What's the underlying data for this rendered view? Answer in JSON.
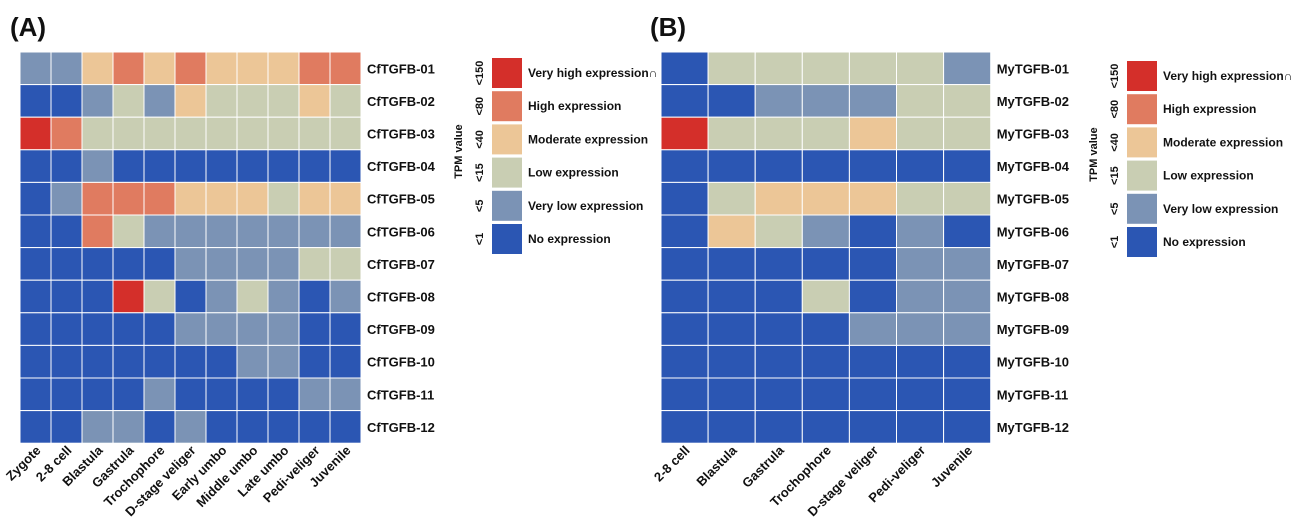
{
  "colors": {
    "level_0": "#2b56b3",
    "level_1": "#7b93b5",
    "level_2": "#c9ceb3",
    "level_3": "#ecc697",
    "level_4": "#e07b60",
    "level_5": "#d42f2a",
    "grid": "#ffffff"
  },
  "legend": {
    "title": "TPM value",
    "ticks": [
      "<150",
      "<80",
      "<40",
      "<15",
      "<5",
      "<1"
    ],
    "entries": [
      {
        "label": "Very high expression∩",
        "level": 5
      },
      {
        "label": "High expression",
        "level": 4
      },
      {
        "label": "Moderate expression",
        "level": 3
      },
      {
        "label": "Low expression",
        "level": 2
      },
      {
        "label": "Very low expression",
        "level": 1
      },
      {
        "label": "No expression",
        "level": 0
      }
    ]
  },
  "chart_data": [
    {
      "type": "heatmap",
      "panel_label": "(A)",
      "columns": [
        "Zygote",
        "2-8 cell",
        "Blastula",
        "Gastrula",
        "Trochophore",
        "D-stage veliger",
        "Early umbo",
        "Middle umbo",
        "Late umbo",
        "Pedi-veliger",
        "Juvenile"
      ],
      "rows": [
        "CfTGFB-01",
        "CfTGFB-02",
        "CfTGFB-03",
        "CfTGFB-04",
        "CfTGFB-05",
        "CfTGFB-06",
        "CfTGFB-07",
        "CfTGFB-08",
        "CfTGFB-09",
        "CfTGFB-10",
        "CfTGFB-11",
        "CfTGFB-12"
      ],
      "values": [
        [
          1,
          1,
          3,
          4,
          3,
          4,
          3,
          3,
          3,
          4,
          4
        ],
        [
          0,
          0,
          1,
          2,
          1,
          3,
          2,
          2,
          2,
          3,
          2
        ],
        [
          5,
          4,
          2,
          2,
          2,
          2,
          2,
          2,
          2,
          2,
          2
        ],
        [
          0,
          0,
          1,
          0,
          0,
          0,
          0,
          0,
          0,
          0,
          0
        ],
        [
          0,
          1,
          4,
          4,
          4,
          3,
          3,
          3,
          2,
          3,
          3
        ],
        [
          0,
          0,
          4,
          2,
          1,
          1,
          1,
          1,
          1,
          1,
          1
        ],
        [
          0,
          0,
          0,
          0,
          0,
          1,
          1,
          1,
          1,
          2,
          2
        ],
        [
          0,
          0,
          0,
          5,
          2,
          0,
          1,
          2,
          1,
          0,
          1
        ],
        [
          0,
          0,
          0,
          0,
          0,
          1,
          1,
          1,
          1,
          0,
          0
        ],
        [
          0,
          0,
          0,
          0,
          0,
          0,
          0,
          1,
          1,
          0,
          0
        ],
        [
          0,
          0,
          0,
          0,
          1,
          0,
          0,
          0,
          0,
          1,
          1
        ],
        [
          0,
          0,
          1,
          1,
          0,
          1,
          0,
          0,
          0,
          0,
          0
        ]
      ]
    },
    {
      "type": "heatmap",
      "panel_label": "(B)",
      "columns": [
        "2-8 cell",
        "Blastula",
        "Gastrula",
        "Trochophore",
        "D-stage veliger",
        "Pedi-veliger",
        "Juvenile"
      ],
      "rows": [
        "MyTGFB-01",
        "MyTGFB-02",
        "MyTGFB-03",
        "MyTGFB-04",
        "MyTGFB-05",
        "MyTGFB-06",
        "MyTGFB-07",
        "MyTGFB-08",
        "MyTGFB-09",
        "MyTGFB-10",
        "MyTGFB-11",
        "MyTGFB-12"
      ],
      "values": [
        [
          0,
          2,
          2,
          2,
          2,
          2,
          1
        ],
        [
          0,
          0,
          1,
          1,
          1,
          2,
          2
        ],
        [
          5,
          2,
          2,
          2,
          3,
          2,
          2
        ],
        [
          0,
          0,
          0,
          0,
          0,
          0,
          0
        ],
        [
          0,
          2,
          3,
          3,
          3,
          2,
          2
        ],
        [
          0,
          3,
          2,
          1,
          0,
          1,
          0
        ],
        [
          0,
          0,
          0,
          0,
          0,
          1,
          1
        ],
        [
          0,
          0,
          0,
          2,
          0,
          1,
          1
        ],
        [
          0,
          0,
          0,
          0,
          1,
          1,
          1
        ],
        [
          0,
          0,
          0,
          0,
          0,
          0,
          0
        ],
        [
          0,
          0,
          0,
          0,
          0,
          0,
          0
        ],
        [
          0,
          0,
          0,
          0,
          0,
          0,
          0
        ]
      ]
    }
  ]
}
